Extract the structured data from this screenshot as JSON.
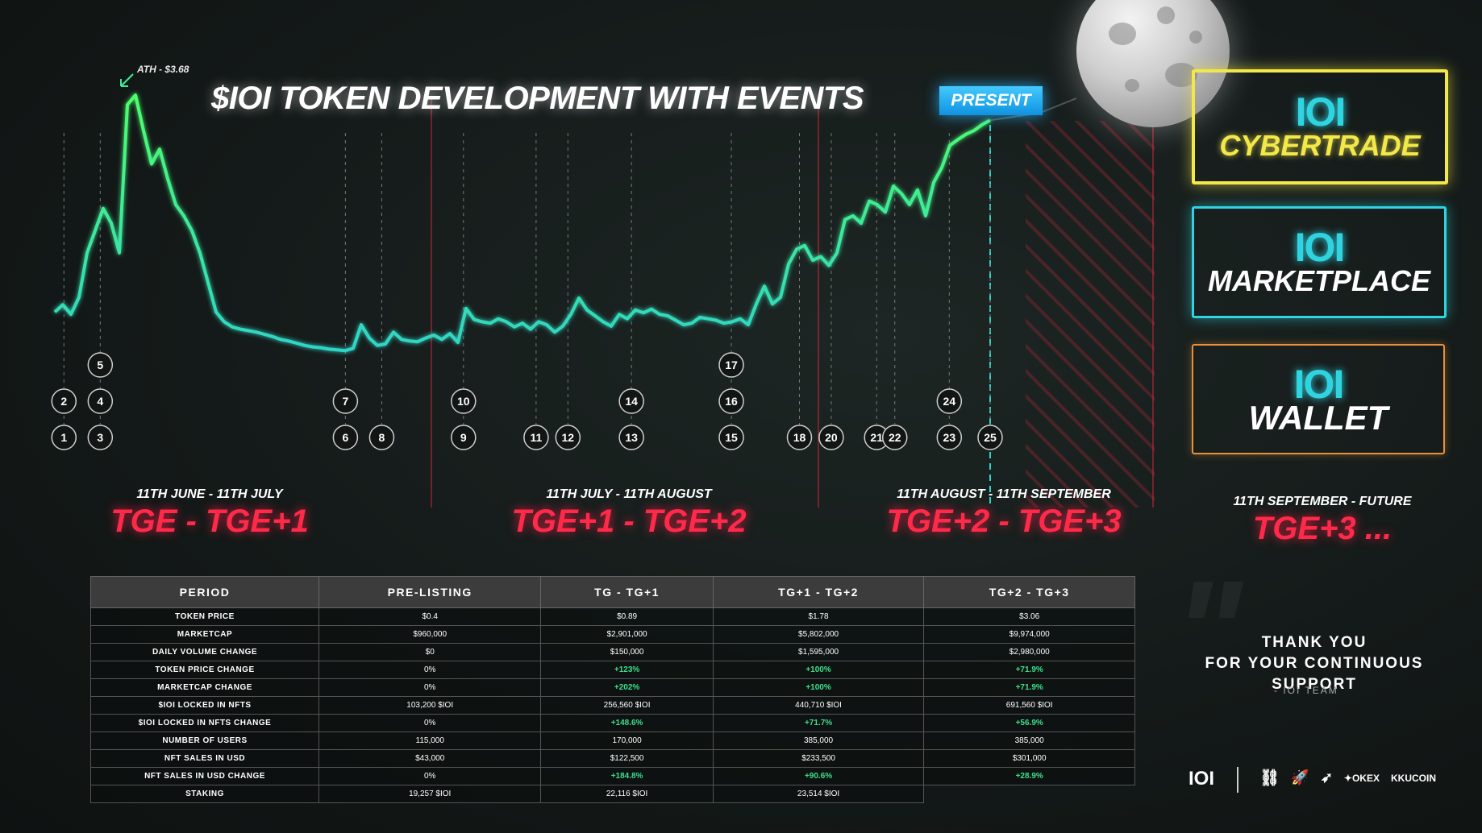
{
  "title": "$IOI TOKEN DEVELOPMENT WITH EVENTS",
  "ath_label": "ATH - $3.68",
  "present_label": "PRESENT",
  "chart_data": {
    "type": "line",
    "title": "$IOI TOKEN DEVELOPMENT WITH EVENTS",
    "series": [
      {
        "values": [
          0.75,
          0.85,
          0.72,
          0.95,
          1.55,
          1.85,
          2.15,
          1.95,
          1.55,
          3.55,
          3.68,
          3.2,
          2.75,
          2.95,
          2.55,
          2.2,
          2.05,
          1.85,
          1.55,
          1.15,
          0.75,
          0.62,
          0.55,
          0.52,
          0.5,
          0.48,
          0.45,
          0.42,
          0.38,
          0.36,
          0.33,
          0.3,
          0.28,
          0.27,
          0.25,
          0.24,
          0.23,
          0.26,
          0.58,
          0.4,
          0.3,
          0.32,
          0.48,
          0.38,
          0.36,
          0.35,
          0.4,
          0.44,
          0.38,
          0.46,
          0.34,
          0.8,
          0.65,
          0.62,
          0.6,
          0.66,
          0.62,
          0.55,
          0.6,
          0.52,
          0.62,
          0.58,
          0.48,
          0.56,
          0.72,
          0.94,
          0.78,
          0.7,
          0.62,
          0.56,
          0.72,
          0.66,
          0.78,
          0.74,
          0.79,
          0.72,
          0.7,
          0.64,
          0.58,
          0.6,
          0.68,
          0.66,
          0.64,
          0.6,
          0.62,
          0.66,
          0.58,
          0.86,
          1.1,
          0.86,
          0.95,
          1.4,
          1.6,
          1.65,
          1.45,
          1.5,
          1.38,
          1.55,
          2.0,
          2.05,
          1.95,
          2.25,
          2.2,
          2.1,
          2.45,
          2.35,
          2.2,
          2.4,
          2.05,
          2.5,
          2.7,
          3.0,
          3.08,
          3.15,
          3.2,
          3.28,
          3.34
        ],
        "color": "#3cf09a"
      }
    ],
    "ath_value": 3.68,
    "events": [
      {
        "id": "1",
        "day": 2
      },
      {
        "id": "2",
        "day": 2
      },
      {
        "id": "3",
        "day": 10
      },
      {
        "id": "4",
        "day": 10
      },
      {
        "id": "5",
        "day": 10
      },
      {
        "id": "6",
        "day": 64
      },
      {
        "id": "7",
        "day": 64
      },
      {
        "id": "8",
        "day": 72
      },
      {
        "id": "9",
        "day": 90
      },
      {
        "id": "10",
        "day": 90
      },
      {
        "id": "11",
        "day": 106
      },
      {
        "id": "12",
        "day": 113
      },
      {
        "id": "13",
        "day": 127
      },
      {
        "id": "14",
        "day": 127
      },
      {
        "id": "15",
        "day": 149
      },
      {
        "id": "16",
        "day": 149
      },
      {
        "id": "17",
        "day": 149
      },
      {
        "id": "18",
        "day": 164
      },
      {
        "id": "20",
        "day": 171
      },
      {
        "id": "21",
        "day": 181
      },
      {
        "id": "22",
        "day": 185
      },
      {
        "id": "23",
        "day": 197
      },
      {
        "id": "24",
        "day": 197
      },
      {
        "id": "25",
        "day": 206
      }
    ],
    "periods": [
      {
        "date": "11TH JUNE -  11TH JULY",
        "name": "TGE - TGE+1"
      },
      {
        "date": "11TH JULY -  11TH AUGUST",
        "name": "TGE+1 - TGE+2"
      },
      {
        "date": "11TH AUGUST -  11TH SEPTEMBER",
        "name": "TGE+2 - TGE+3"
      },
      {
        "date": "11TH SEPTEMBER - FUTURE",
        "name": "TGE+3 ..."
      }
    ]
  },
  "products": [
    {
      "name": "CYBERTRADE",
      "border": "#f2e84a"
    },
    {
      "name": "MARKETPLACE",
      "border": "#2fd4e0"
    },
    {
      "name": "WALLET",
      "border": "#e8903a"
    }
  ],
  "table": {
    "headers": [
      "PERIOD",
      "PRE-LISTING",
      "TG - TG+1",
      "TG+1 - TG+2",
      "TG+2 - TG+3"
    ],
    "rows": [
      [
        "TOKEN PRICE",
        "$0.4",
        "$0.89",
        "$1.78",
        "$3.06"
      ],
      [
        "MARKETCAP",
        "$960,000",
        "$2,901,000",
        "$5,802,000",
        "$9,974,000"
      ],
      [
        "DAILY VOLUME CHANGE",
        "$0",
        "$150,000",
        "$1,595,000",
        "$2,980,000"
      ],
      [
        "TOKEN PRICE CHANGE",
        "0%",
        "+123%",
        "+100%",
        "+71.9%"
      ],
      [
        "MARKETCAP CHANGE",
        "0%",
        "+202%",
        "+100%",
        "+71.9%"
      ],
      [
        "$IOI LOCKED IN NFTS",
        "103,200 $IOI",
        "256,560 $IOI",
        "440,710 $IOI",
        "691,560 $IOI"
      ],
      [
        "$IOI LOCKED IN NFTS CHANGE",
        "0%",
        "+148.6%",
        "+71.7%",
        "+56.9%"
      ],
      [
        "NUMBER OF USERS",
        "115,000",
        "170,000",
        "385,000",
        "385,000"
      ],
      [
        "NFT SALES IN USD",
        "$43,000",
        "$122,500",
        "$233,500",
        "$301,000"
      ],
      [
        "NFT SALES IN USD CHANGE",
        "0%",
        "+184.8%",
        "+90.6%",
        "+28.9%"
      ],
      [
        "STAKING",
        "19,257 $IOI",
        "22,116 $IOI",
        "23,514 $IOI",
        ""
      ]
    ]
  },
  "thanks": {
    "line1": "THANK YOU",
    "line2": "FOR YOUR CONTINUOUS SUPPORT",
    "sign": "-  IOI TEAM"
  },
  "footer": {
    "brand": "IOI",
    "partners": [
      "OKEX",
      "KUCOIN"
    ]
  },
  "colors": {
    "line_start": "#2fd4c8",
    "line_end": "#4dff6a",
    "period_red": "#ff2a4a",
    "present_blue": "#1ea8f0"
  }
}
